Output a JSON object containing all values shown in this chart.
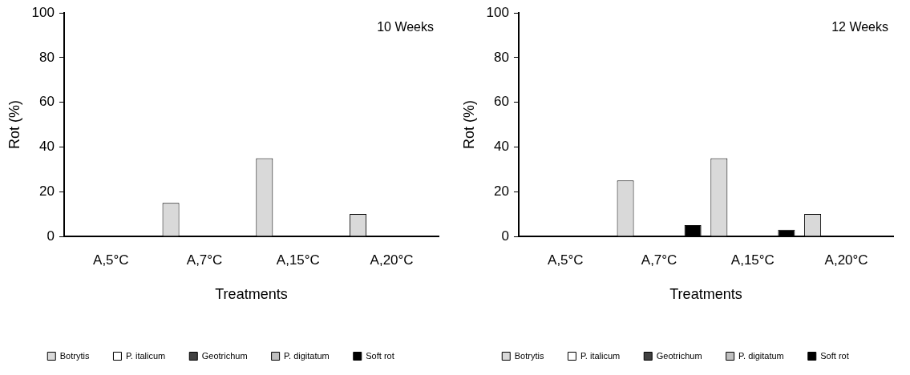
{
  "chart_data": [
    {
      "type": "bar",
      "ylabel": "Rot (%)",
      "xlabel": "Treatments",
      "annotations": [
        "10 Weeks"
      ],
      "categories": [
        "A,5°C",
        "A,7°C",
        "A,15°C",
        "A,20°C"
      ],
      "series": [
        {
          "name": "Botrytis",
          "color": "#d9d9d9",
          "values": [
            0,
            15,
            35,
            10
          ]
        },
        {
          "name": "P. italicum",
          "color": "#ffffff",
          "values": [
            0,
            0,
            0,
            0
          ]
        },
        {
          "name": "Geotrichum",
          "color": "#404040",
          "values": [
            0,
            0,
            0,
            0
          ]
        },
        {
          "name": "P. digitatum",
          "color": "#bfbfbf",
          "values": [
            0,
            0,
            0,
            0
          ]
        },
        {
          "name": "Soft rot",
          "color": "#000000",
          "values": [
            0,
            0,
            0,
            0
          ]
        }
      ],
      "ylim": [
        0,
        100
      ],
      "yticks": [
        0,
        20,
        40,
        60,
        80,
        100
      ],
      "grid": false,
      "legend": "bottom"
    },
    {
      "type": "bar",
      "ylabel": "Rot (%)",
      "xlabel": "Treatments",
      "annotations": [
        "12 Weeks"
      ],
      "categories": [
        "A,5°C",
        "A,7°C",
        "A,15°C",
        "A,20°C"
      ],
      "series": [
        {
          "name": "Botrytis",
          "color": "#d9d9d9",
          "values": [
            0,
            25,
            35,
            10
          ]
        },
        {
          "name": "P. italicum",
          "color": "#ffffff",
          "values": [
            0,
            0,
            0,
            0
          ]
        },
        {
          "name": "Geotrichum",
          "color": "#404040",
          "values": [
            0,
            0,
            0,
            0
          ]
        },
        {
          "name": "P. digitatum",
          "color": "#bfbfbf",
          "values": [
            0,
            0,
            0,
            0
          ]
        },
        {
          "name": "Soft rot",
          "color": "#000000",
          "values": [
            0,
            5,
            3,
            0
          ]
        }
      ],
      "ylim": [
        0,
        100
      ],
      "yticks": [
        0,
        20,
        40,
        60,
        80,
        100
      ],
      "grid": false,
      "legend": "bottom"
    }
  ]
}
